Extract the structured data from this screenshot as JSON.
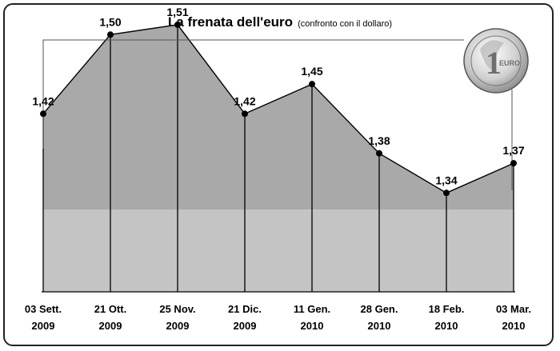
{
  "title": "La frenata dell'euro",
  "subtitle": "(confronto con il dollaro)",
  "coin": {
    "icon": "euro-coin-icon",
    "numeral": "1",
    "text": "EURO"
  },
  "colors": {
    "area_upper": "#a9a9a9",
    "area_lower": "#c4c4c4",
    "line": "#000000"
  },
  "chart_data": {
    "type": "area",
    "title": "La frenata dell'euro",
    "subtitle": "(confronto con il dollaro)",
    "categories": [
      [
        "03 Sett.",
        "2009"
      ],
      [
        "21 Ott.",
        "2009"
      ],
      [
        "25 Nov.",
        "2009"
      ],
      [
        "21 Dic.",
        "2009"
      ],
      [
        "11 Gen.",
        "2010"
      ],
      [
        "28 Gen.",
        "2010"
      ],
      [
        "18 Feb.",
        "2010"
      ],
      [
        "03 Mar.",
        "2010"
      ]
    ],
    "values": [
      1.42,
      1.5,
      1.51,
      1.42,
      1.45,
      1.38,
      1.34,
      1.37
    ],
    "value_labels": [
      "1,42",
      "1,50",
      "1,51",
      "1,42",
      "1,45",
      "1,38",
      "1,34",
      "1,37"
    ],
    "ylim": [
      1.24,
      1.535
    ],
    "grid": false,
    "legend": "none"
  }
}
